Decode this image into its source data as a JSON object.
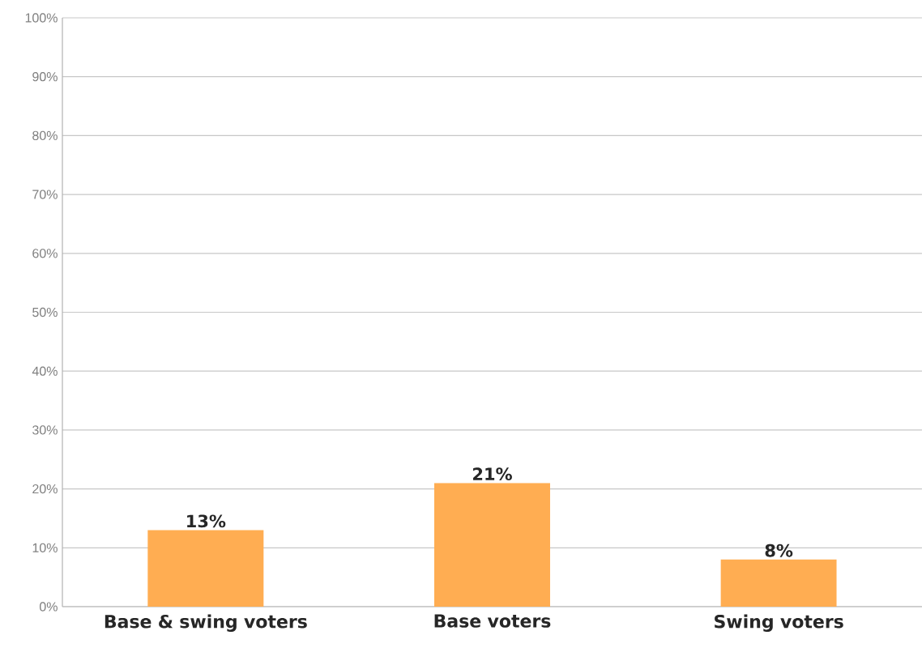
{
  "chart_data": {
    "type": "bar",
    "categories": [
      "Base & swing voters",
      "Base voters",
      "Swing voters"
    ],
    "values": [
      13,
      21,
      8
    ],
    "value_labels": [
      "13%",
      "21%",
      "8%"
    ],
    "color": "#ffad52",
    "ylim": [
      0,
      100
    ],
    "yticks": [
      {
        "value": 0,
        "label": "0%"
      },
      {
        "value": 10,
        "label": "10%"
      },
      {
        "value": 20,
        "label": "20%"
      },
      {
        "value": 30,
        "label": "30%"
      },
      {
        "value": 40,
        "label": "40%"
      },
      {
        "value": 50,
        "label": "50%"
      },
      {
        "value": 60,
        "label": "60%"
      },
      {
        "value": 70,
        "label": "70%"
      },
      {
        "value": 80,
        "label": "80%"
      },
      {
        "value": 90,
        "label": "90%"
      },
      {
        "value": 100,
        "label": "100%"
      }
    ],
    "grid": "y"
  }
}
